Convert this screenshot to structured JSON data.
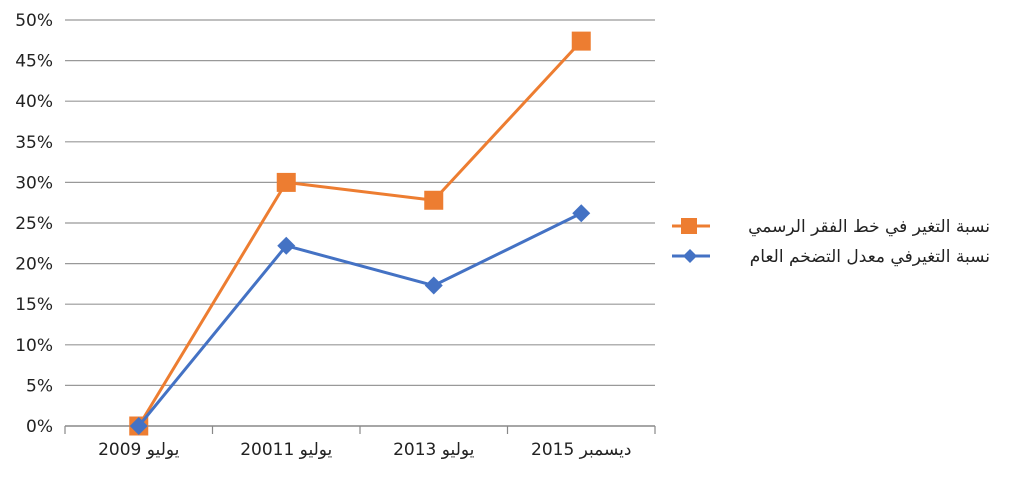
{
  "chart_data": {
    "type": "line",
    "categories": [
      "يوليو 2009",
      "يوليو 20011",
      "يوليو 2013",
      "ديسمبر 2015"
    ],
    "y_ticks": [
      "0%",
      "5%",
      "10%",
      "15%",
      "20%",
      "25%",
      "30%",
      "35%",
      "40%",
      "45%",
      "50%"
    ],
    "ylim": [
      0,
      50
    ],
    "grid": true,
    "legend_position": "right",
    "series": [
      {
        "name": "نسبة التغير في خط الفقر الرسمي",
        "color": "#ED7D31",
        "marker": "square",
        "values": [
          0,
          30,
          27.8,
          47.4
        ]
      },
      {
        "name": "نسبة التغيرفي معدل التضخم العام",
        "color": "#4472C4",
        "marker": "diamond",
        "values": [
          0,
          22.2,
          17.3,
          26.2
        ]
      }
    ]
  }
}
